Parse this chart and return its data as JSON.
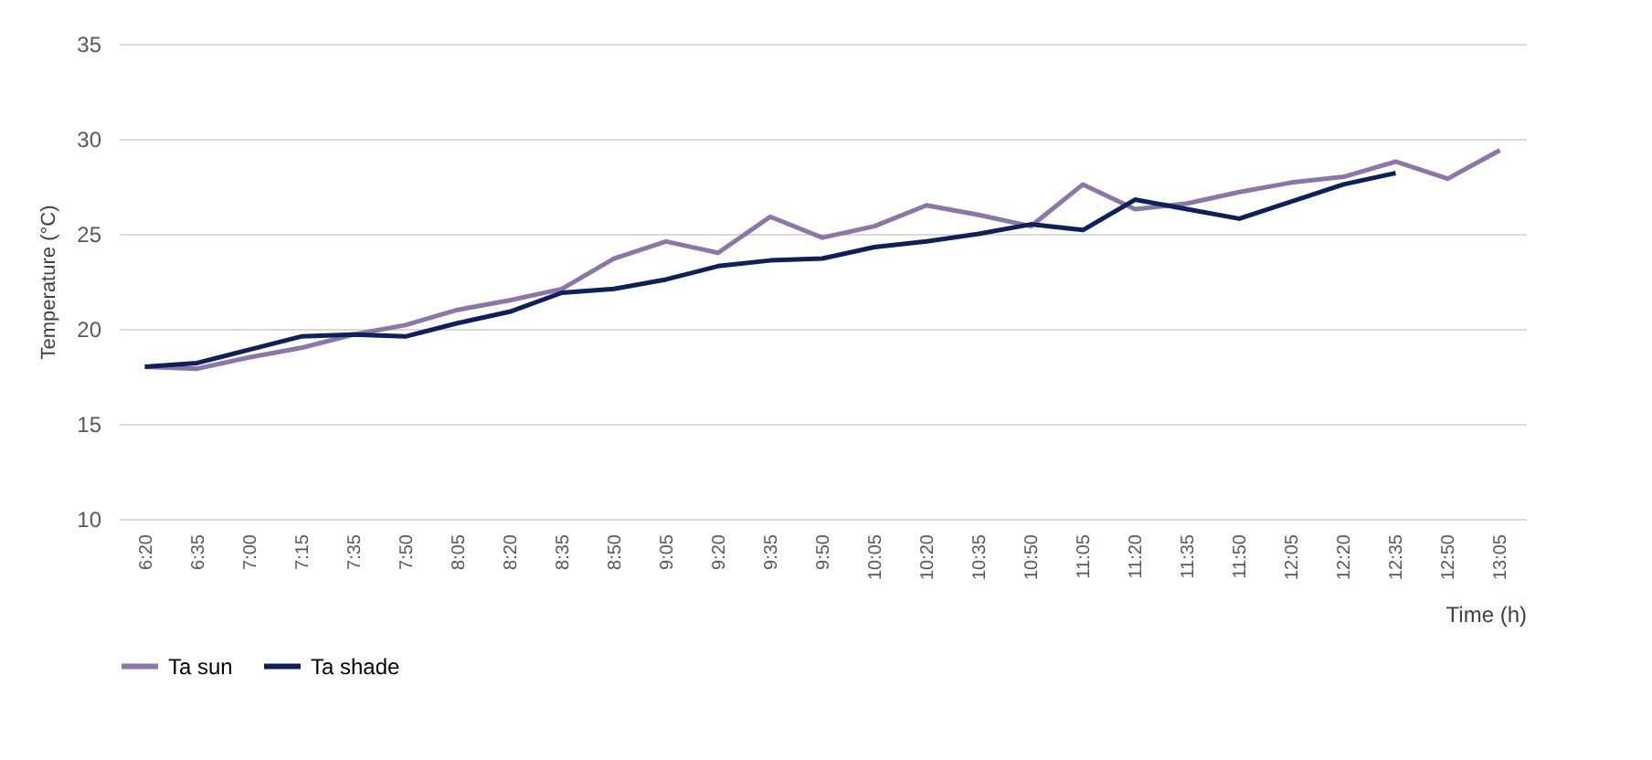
{
  "chart_data": {
    "type": "line",
    "xlabel": "Time (h)",
    "ylabel": "Temperature (°C)",
    "categories": [
      "6:20",
      "6:35",
      "7:00",
      "7:15",
      "7:35",
      "7:50",
      "8:05",
      "8:20",
      "8:35",
      "8:50",
      "9:05",
      "9:20",
      "9:35",
      "9:50",
      "10:05",
      "10:20",
      "10:35",
      "10:50",
      "11:05",
      "11:20",
      "11:35",
      "11:50",
      "12:05",
      "12:20",
      "12:35",
      "12:50",
      "13:05"
    ],
    "series": [
      {
        "name": "Ta sun",
        "color": "#8a76a8",
        "values": [
          18.0,
          17.9,
          18.5,
          19.0,
          19.7,
          20.2,
          21.0,
          21.5,
          22.1,
          23.7,
          24.6,
          24.0,
          25.9,
          24.8,
          25.4,
          26.5,
          26.0,
          25.4,
          27.6,
          26.3,
          26.6,
          27.2,
          27.7,
          28.0,
          28.8,
          27.9,
          29.4
        ]
      },
      {
        "name": "Ta shade",
        "color": "#0d1f5c",
        "values": [
          18.0,
          18.2,
          18.9,
          19.6,
          19.7,
          19.6,
          20.3,
          20.9,
          21.9,
          22.1,
          22.6,
          23.3,
          23.6,
          23.7,
          24.3,
          24.6,
          25.0,
          25.5,
          25.2,
          26.8,
          26.3,
          25.8,
          26.7,
          27.6,
          28.2,
          null,
          null
        ]
      }
    ],
    "ylim": [
      10,
      35
    ],
    "yticks": [
      10,
      15,
      20,
      25,
      30,
      35
    ],
    "grid": "y",
    "legend": "bottom",
    "marker": "none",
    "line_style": "solid"
  }
}
